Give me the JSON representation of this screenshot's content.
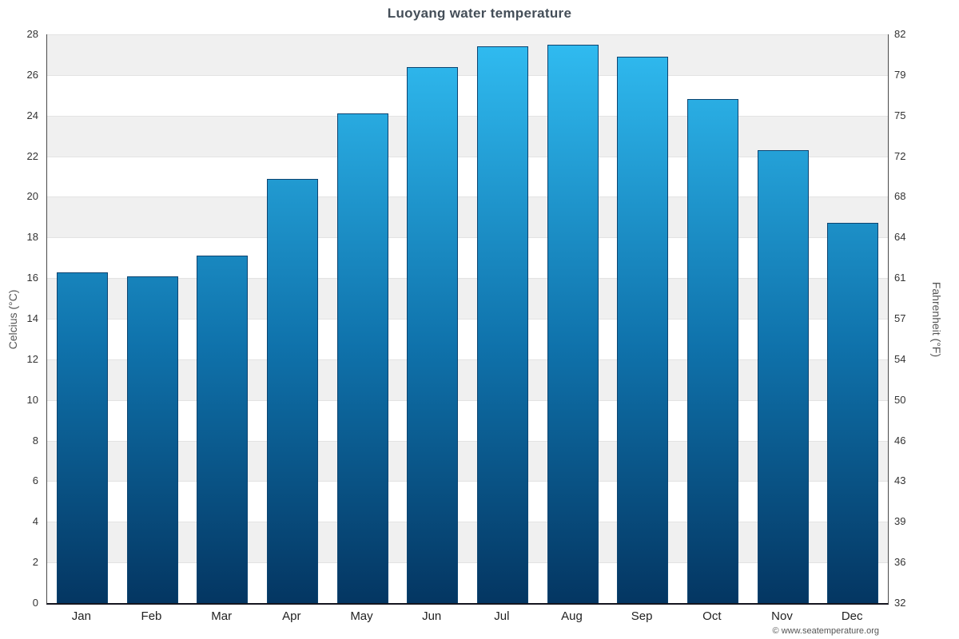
{
  "chart_data": {
    "type": "bar",
    "title": "Luoyang water temperature",
    "categories": [
      "Jan",
      "Feb",
      "Mar",
      "Apr",
      "May",
      "Jun",
      "Jul",
      "Aug",
      "Sep",
      "Oct",
      "Nov",
      "Dec"
    ],
    "values": [
      16.3,
      16.1,
      17.1,
      20.9,
      24.1,
      26.4,
      27.4,
      27.5,
      26.9,
      24.8,
      22.3,
      18.7
    ],
    "series_name": "Water temperature (°C)",
    "ylabel_left": "Celcius (°C)",
    "ylabel_right": "Fahrenheit (°F)",
    "ylim": [
      0,
      28
    ],
    "ytick_step": 2,
    "yticks_left": [
      0,
      2,
      4,
      6,
      8,
      10,
      12,
      14,
      16,
      18,
      20,
      22,
      24,
      26,
      28
    ],
    "yticks_right": [
      "32",
      "36",
      "39",
      "43",
      "46",
      "50",
      "54",
      "57",
      "61",
      "64",
      "68",
      "72",
      "75",
      "79",
      "82"
    ],
    "grid": true,
    "legend": false,
    "background_bands": true
  },
  "colors": {
    "bar_gradient_top": "#31bdf2",
    "bar_gradient_bottom": "#043662",
    "bar_border": "#0d4470",
    "band_gray": "#f0f0f0",
    "band_white": "#ffffff",
    "axis_line": "#15151f",
    "title_text": "#444e58",
    "tick_text": "#333333"
  },
  "footer": {
    "credit": "© www.seatemperature.org"
  }
}
